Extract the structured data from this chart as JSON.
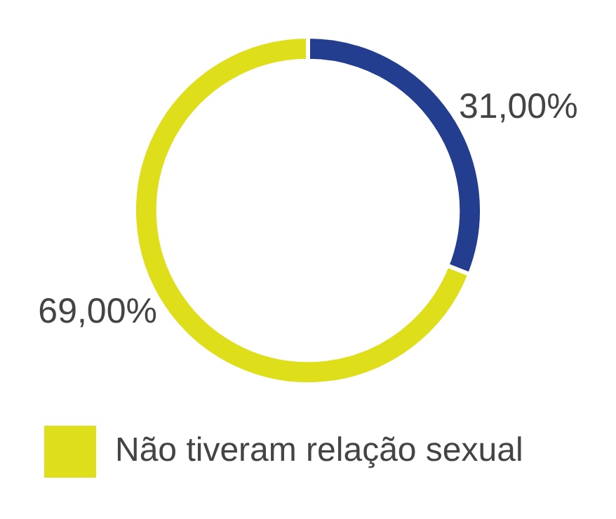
{
  "chart_data": {
    "type": "donut",
    "categories": [
      null,
      "Não tiveram relação sexual"
    ],
    "values": [
      31,
      69
    ],
    "colors": [
      "#233e8f",
      "#dede1a"
    ],
    "value_labels": [
      "31,00%",
      "69,00%"
    ],
    "legend": "bottom"
  }
}
